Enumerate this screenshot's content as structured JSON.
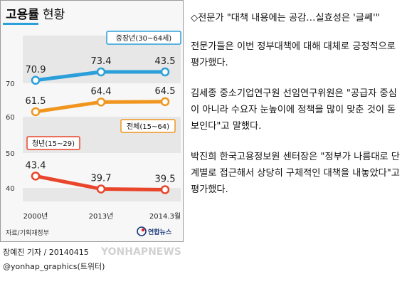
{
  "infographic": {
    "title": "고용률",
    "title_suffix": "현황",
    "source": "자료/기획재정부",
    "brand": "연합뉴스",
    "credit_name": "장예진 기자 / 20140415",
    "credit_handle": "@yonhap_graphics(트위터)",
    "watermark": "YONHAPNEWS"
  },
  "chart_data": {
    "type": "line",
    "title": "고용률 현황",
    "categories": [
      "2000년",
      "2013년",
      "2014.3월"
    ],
    "yticks": [
      40,
      50,
      60,
      70
    ],
    "ylim": [
      37,
      77
    ],
    "grid": "alternating horizontal bands",
    "series": [
      {
        "name": "중장년(30~64세)",
        "values": [
          70.9,
          73.4,
          43.5
        ],
        "labels": [
          "70.9",
          "73.4",
          "43.5"
        ],
        "color": "#2b9fd9"
      },
      {
        "name": "전체(15~64)",
        "values": [
          61.5,
          64.4,
          64.5
        ],
        "labels": [
          "61.5",
          "64.4",
          "64.5"
        ],
        "color": "#f0961e"
      },
      {
        "name": "청년(15~29)",
        "values": [
          43.4,
          39.7,
          39.5
        ],
        "labels": [
          "43.4",
          "39.7",
          "39.5"
        ],
        "color": "#e8452a"
      }
    ]
  },
  "colors": {
    "band": "#e7e7e7",
    "title_bar": "#2b9fd9",
    "text": "#111111"
  },
  "article": {
    "headline": "◇전문가 \"대책 내용에는 공감…실효성은 '글쎄'\"",
    "paragraphs": [
      "전문가들은 이번 정부대책에 대해 대체로 긍정적으로 평가했다.",
      "김세종 중소기업연구원 선임연구위원은 \"공급자 중심이 아니라 수요자 눈높이에 정책을 많이 맞춘 것이 돋보인다\"고 말했다.",
      "박진희 한국고용정보원 센터장은 \"정부가 나름대로 단계별로 접근해서 상당히 구체적인 대책을 내놓았다\"고 평가했다."
    ]
  }
}
